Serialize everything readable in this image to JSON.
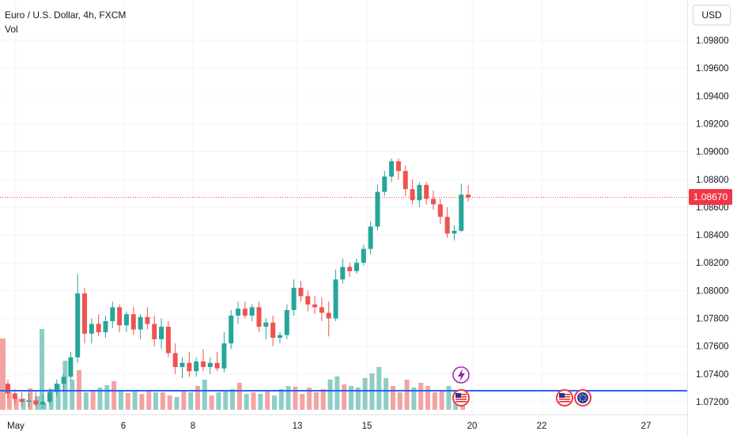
{
  "legend": {
    "title": "Euro / U.S. Dollar, 4h, FXCM",
    "volume_label": "Vol"
  },
  "currency_button": "USD",
  "last_price_label": "1.08670",
  "colors": {
    "up": "#26a69a",
    "down": "#ef5350",
    "vol_up": "#8ecdc6",
    "vol_down": "#f4a3a2",
    "grid": "#f0f3fa",
    "price_line": "#f23645",
    "support_line": "#2962ff",
    "event_lightning": "#9c27b0"
  },
  "chart_data": {
    "type": "candlestick",
    "title": "Euro / U.S. Dollar, 4h, FXCM",
    "y_ticks": [
      "1.09800",
      "1.09600",
      "1.09400",
      "1.09200",
      "1.09000",
      "1.08800",
      "1.08600",
      "1.08400",
      "1.08200",
      "1.08000",
      "1.07800",
      "1.07600",
      "1.07400",
      "1.07200"
    ],
    "y_range": [
      1.0716,
      1.0998
    ],
    "x_ticks": [
      "May",
      "6",
      "8",
      "13",
      "15",
      "20",
      "22",
      "27"
    ],
    "last_price": 1.0867,
    "horizontal_line": 1.0728,
    "event_markers": [
      "lightning",
      "us-flag",
      "us-flag",
      "eu-flag"
    ],
    "candles": [
      [
        1.0733,
        1.0736,
        1.0722,
        1.0726
      ],
      [
        1.0726,
        1.0729,
        1.0718,
        1.0722
      ],
      [
        1.0722,
        1.0727,
        1.0717,
        1.072
      ],
      [
        1.072,
        1.0726,
        1.0716,
        1.0721
      ],
      [
        1.0721,
        1.0728,
        1.0717,
        1.0718
      ],
      [
        1.0718,
        1.0725,
        1.0715,
        1.072
      ],
      [
        1.072,
        1.073,
        1.0718,
        1.0727
      ],
      [
        1.0727,
        1.0736,
        1.0724,
        1.0733
      ],
      [
        1.0733,
        1.074,
        1.0727,
        1.0738
      ],
      [
        1.0738,
        1.0756,
        1.0735,
        1.0752
      ],
      [
        1.0752,
        1.0812,
        1.0748,
        1.0798
      ],
      [
        1.0798,
        1.0802,
        1.0762,
        1.0769
      ],
      [
        1.0769,
        1.078,
        1.0762,
        1.0776
      ],
      [
        1.0776,
        1.0783,
        1.0767,
        1.077
      ],
      [
        1.077,
        1.0782,
        1.0766,
        1.0778
      ],
      [
        1.0778,
        1.0792,
        1.0773,
        1.0788
      ],
      [
        1.0788,
        1.079,
        1.077,
        1.0775
      ],
      [
        1.0775,
        1.0785,
        1.077,
        1.0783
      ],
      [
        1.0783,
        1.0788,
        1.0768,
        1.0772
      ],
      [
        1.0772,
        1.0783,
        1.0765,
        1.0781
      ],
      [
        1.0781,
        1.0788,
        1.0772,
        1.0776
      ],
      [
        1.0776,
        1.0782,
        1.076,
        1.0765
      ],
      [
        1.0765,
        1.078,
        1.0758,
        1.0774
      ],
      [
        1.0774,
        1.0778,
        1.0752,
        1.0755
      ],
      [
        1.0755,
        1.0762,
        1.074,
        1.0745
      ],
      [
        1.0745,
        1.0752,
        1.0737,
        1.0748
      ],
      [
        1.0748,
        1.0756,
        1.0738,
        1.0742
      ],
      [
        1.0742,
        1.0752,
        1.0738,
        1.0749
      ],
      [
        1.0749,
        1.0758,
        1.0742,
        1.0745
      ],
      [
        1.0745,
        1.0752,
        1.074,
        1.0748
      ],
      [
        1.0748,
        1.0756,
        1.0742,
        1.0744
      ],
      [
        1.0744,
        1.077,
        1.0741,
        1.0762
      ],
      [
        1.0762,
        1.0786,
        1.0758,
        1.0782
      ],
      [
        1.0782,
        1.0792,
        1.0776,
        1.0787
      ],
      [
        1.0787,
        1.0792,
        1.078,
        1.0782
      ],
      [
        1.0782,
        1.079,
        1.0778,
        1.0788
      ],
      [
        1.0788,
        1.0792,
        1.077,
        1.0774
      ],
      [
        1.0774,
        1.078,
        1.0765,
        1.0777
      ],
      [
        1.0777,
        1.0782,
        1.076,
        1.0766
      ],
      [
        1.0766,
        1.077,
        1.0762,
        1.0768
      ],
      [
        1.0768,
        1.079,
        1.0765,
        1.0786
      ],
      [
        1.0786,
        1.0808,
        1.0782,
        1.0802
      ],
      [
        1.0802,
        1.0807,
        1.0792,
        1.0796
      ],
      [
        1.0796,
        1.08,
        1.0785,
        1.079
      ],
      [
        1.079,
        1.0796,
        1.0783,
        1.0788
      ],
      [
        1.0788,
        1.0795,
        1.0778,
        1.0784
      ],
      [
        1.0784,
        1.0792,
        1.0767,
        1.078
      ],
      [
        1.078,
        1.0815,
        1.0778,
        1.0808
      ],
      [
        1.0808,
        1.0823,
        1.0805,
        1.0817
      ],
      [
        1.0817,
        1.082,
        1.081,
        1.0814
      ],
      [
        1.0814,
        1.0823,
        1.0812,
        1.082
      ],
      [
        1.082,
        1.0833,
        1.0818,
        1.083
      ],
      [
        1.083,
        1.085,
        1.0826,
        1.0846
      ],
      [
        1.0846,
        1.0876,
        1.0843,
        1.0871
      ],
      [
        1.0871,
        1.0886,
        1.0868,
        1.0882
      ],
      [
        1.0882,
        1.0895,
        1.0878,
        1.0893
      ],
      [
        1.0893,
        1.0895,
        1.088,
        1.0886
      ],
      [
        1.0886,
        1.089,
        1.0868,
        1.0873
      ],
      [
        1.0873,
        1.088,
        1.0862,
        1.0865
      ],
      [
        1.0865,
        1.0878,
        1.086,
        1.0876
      ],
      [
        1.0876,
        1.0878,
        1.0862,
        1.0866
      ],
      [
        1.0866,
        1.0872,
        1.0858,
        1.0862
      ],
      [
        1.0862,
        1.0866,
        1.0848,
        1.0853
      ],
      [
        1.0853,
        1.086,
        1.0838,
        1.0841
      ],
      [
        1.0841,
        1.0847,
        1.0836,
        1.0843
      ],
      [
        1.0843,
        1.0877,
        1.0842,
        1.0869
      ],
      [
        1.0869,
        1.0876,
        1.0864,
        1.0867
      ]
    ],
    "volumes": [
      47,
      22,
      14,
      14,
      27,
      17,
      8,
      26,
      32,
      62,
      38,
      50,
      22,
      24,
      28,
      31,
      36,
      24,
      21,
      24,
      20,
      25,
      22,
      22,
      18,
      16,
      24,
      22,
      30,
      38,
      18,
      22,
      23,
      26,
      34,
      20,
      22,
      20,
      24,
      18,
      26,
      30,
      29,
      20,
      28,
      22,
      26,
      38,
      42,
      32,
      30,
      28,
      40,
      46,
      54,
      40,
      30,
      22,
      38,
      28,
      34,
      30,
      22,
      24,
      30,
      24,
      26
    ]
  }
}
